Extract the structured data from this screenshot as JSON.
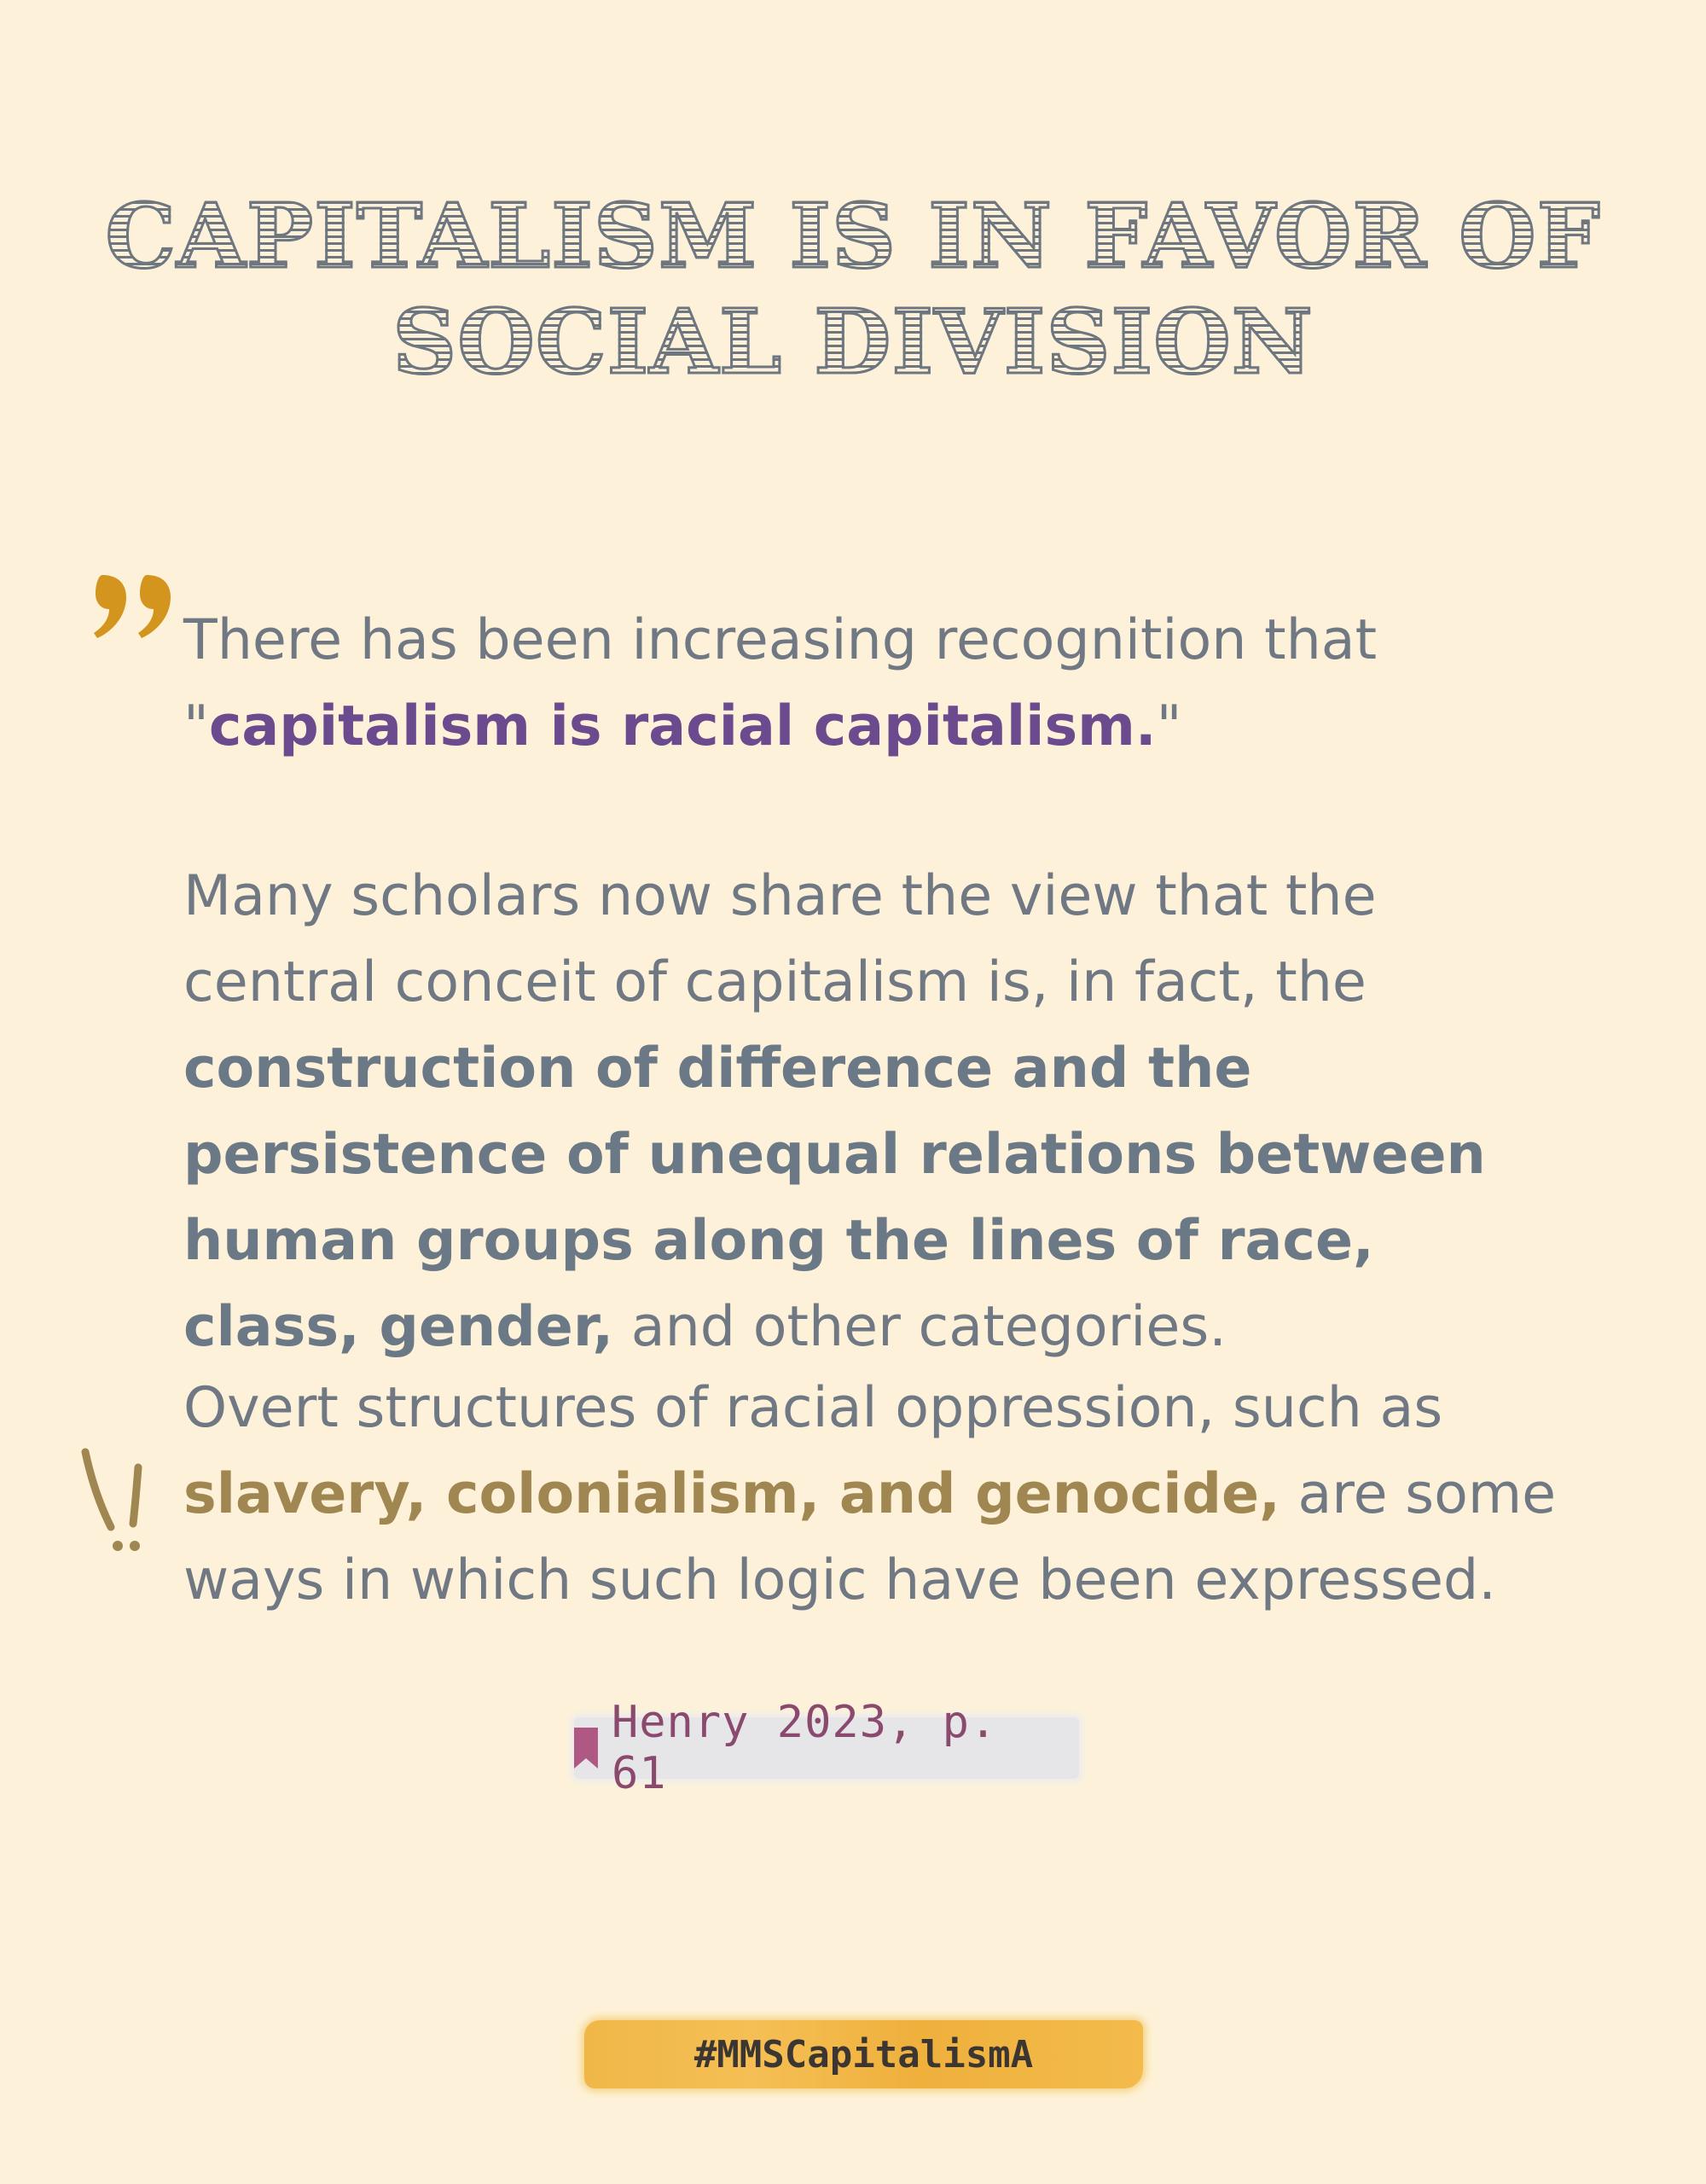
{
  "title": {
    "line1": "CAPITALISM IS IN FAVOR OF",
    "line2": "SOCIAL DIVISION"
  },
  "quote": {
    "mark": "99",
    "mark_color": "#d4951e",
    "p1_plain": "There has been increasing recognition that",
    "p1_open": "\"",
    "p1_highlight": "capitalism is racial capitalism.",
    "p1_close": "\"",
    "p2_plain": "Many scholars now share the view that the central conceit of capitalism is, in fact, the ",
    "p2_bold": "construction of difference and the persistence of unequal relations between human groups along the lines of race, class, gender,",
    "p2_tail": " and other categories.",
    "p3_plain": "Overt structures of racial oppression, such as ",
    "p3_highlight": "slavery, colonialism,  and genocide,",
    "p3_tail": " are some ways in which such logic have been expressed."
  },
  "emphasis_icon": "exclamation-marks-icon",
  "citation": {
    "icon": "bookmark-icon",
    "text": "Henry 2023, p. 61",
    "color": "#8a4a6e"
  },
  "hashtag": {
    "text": "#MMSCapitalismA",
    "background": "#f0b748"
  }
}
